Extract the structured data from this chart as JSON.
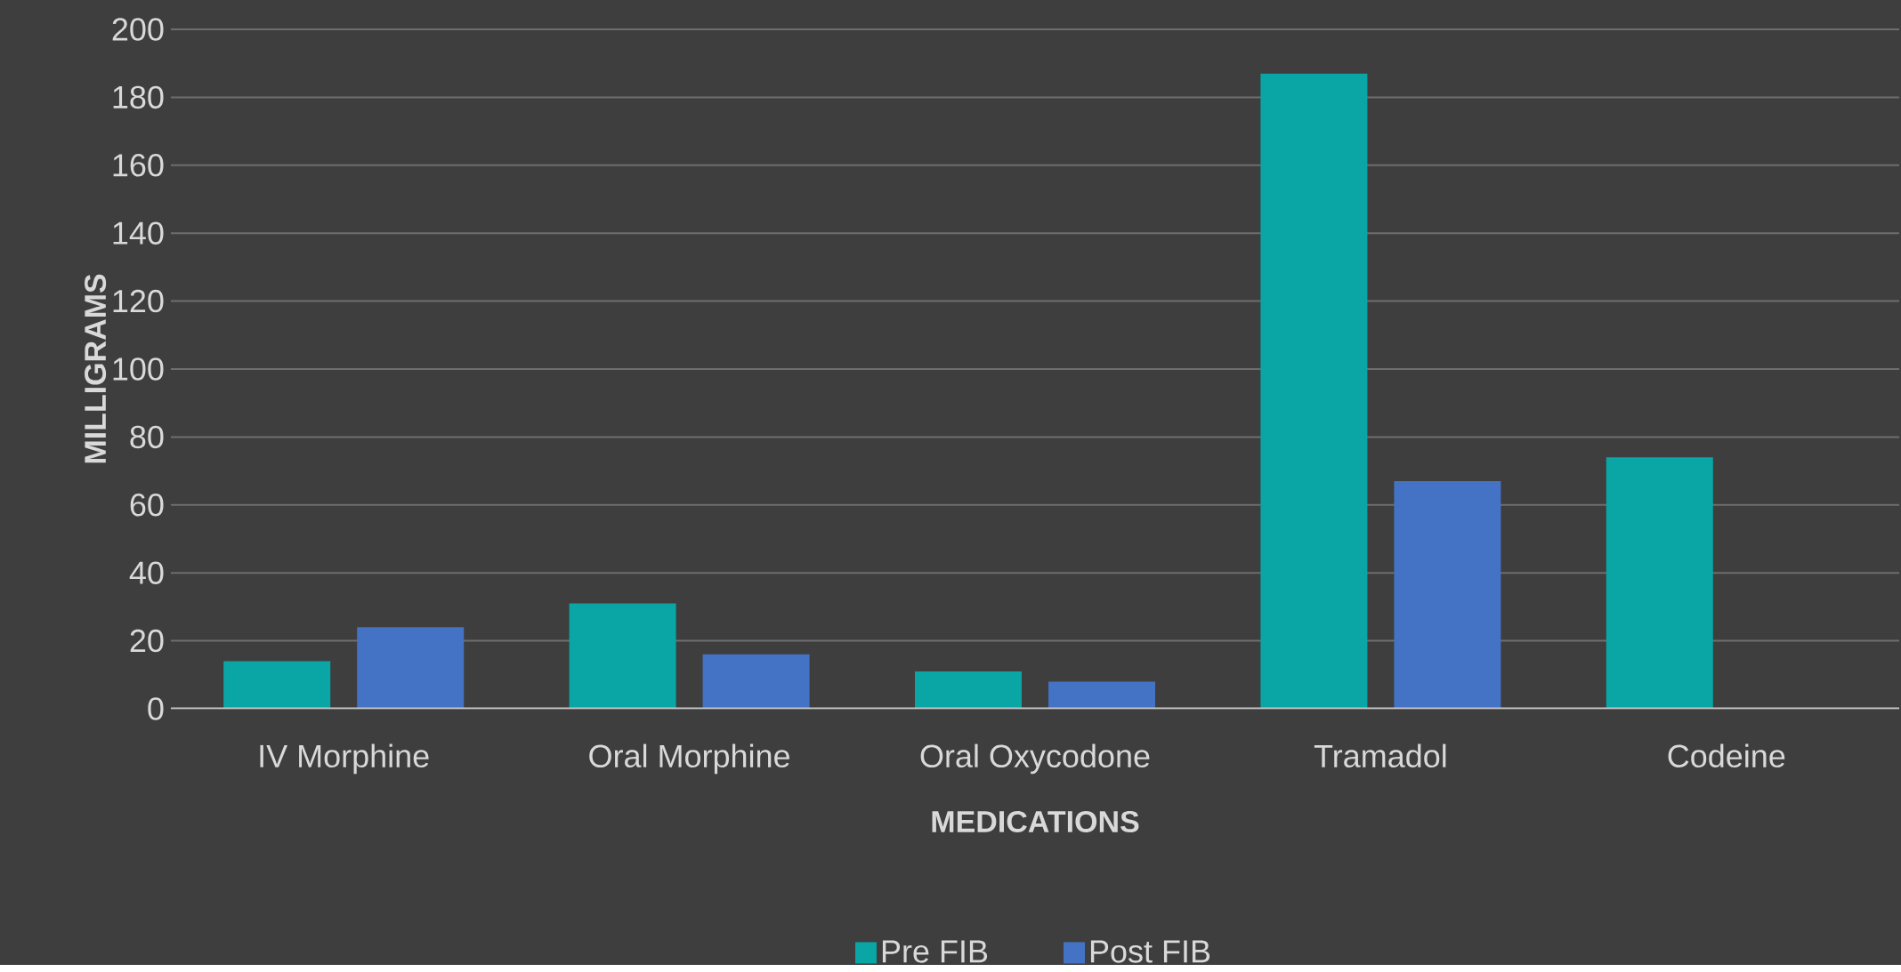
{
  "chart_data": {
    "type": "bar",
    "xlabel": "MEDICATIONS",
    "ylabel": "MILLIGRAMS",
    "categories": [
      "IV Morphine",
      "Oral Morphine",
      "Oral Oxycodone",
      "Tramadol",
      "Codeine"
    ],
    "series": [
      {
        "name": "Pre FIB",
        "color": "#0aa5a5",
        "values": [
          14,
          31,
          11,
          187,
          74
        ]
      },
      {
        "name": "Post FIB",
        "color": "#4472c4",
        "values": [
          24,
          16,
          8,
          67,
          null
        ]
      }
    ],
    "ylim": [
      0,
      200
    ],
    "yticks": [
      0,
      20,
      40,
      60,
      80,
      100,
      120,
      140,
      160,
      180,
      200
    ],
    "grid": "y",
    "legend": "bottom"
  }
}
